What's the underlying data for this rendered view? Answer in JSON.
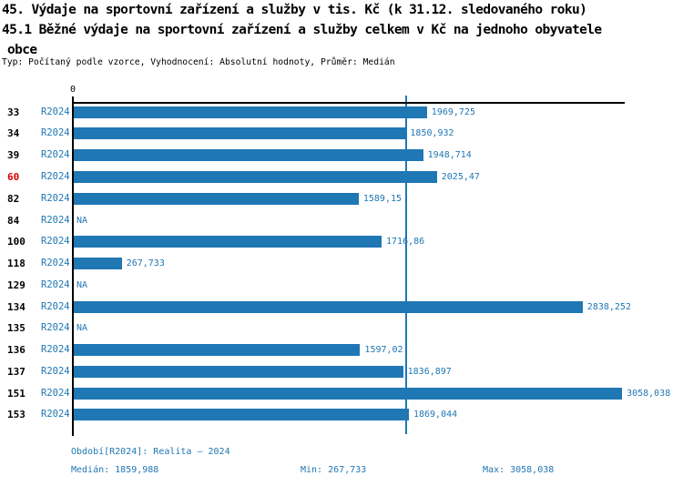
{
  "header": {
    "title_line1": "45. Výdaje na sportovní zařízení a služby v tis. Kč (k 31.12. sledovaného roku)",
    "title_line2": "45.1 Běžné výdaje na sportovní zařízení a služby celkem v Kč na jednoho obyvatele",
    "title_line3": "obce",
    "meta_line": "Typ: Počítaný podle vzorce, Vyhodnocení: Absolutní hodnoty, Průměr: Medián"
  },
  "chart_data": {
    "type": "bar",
    "orientation": "horizontal",
    "title": "45.1 Běžné výdaje na sportovní zařízení a služby celkem v Kč na jednoho obyvatele obce",
    "xlabel": "",
    "ylabel": "",
    "xlim": [
      0,
      3078
    ],
    "x_tick_labels": [
      "0"
    ],
    "grid": false,
    "legend_position": "none",
    "bar_color": "#1f77b4",
    "series_label": "R2024",
    "median_value": 1859.988,
    "categories": [
      "33",
      "34",
      "39",
      "60",
      "82",
      "84",
      "100",
      "118",
      "129",
      "134",
      "135",
      "136",
      "137",
      "151",
      "153"
    ],
    "rows": [
      {
        "municipality": "33",
        "period": "R2024",
        "value": 1969.725,
        "value_label": "1969,725",
        "highlighted": false
      },
      {
        "municipality": "34",
        "period": "R2024",
        "value": 1850.932,
        "value_label": "1850,932",
        "highlighted": false
      },
      {
        "municipality": "39",
        "period": "R2024",
        "value": 1948.714,
        "value_label": "1948,714",
        "highlighted": false
      },
      {
        "municipality": "60",
        "period": "R2024",
        "value": 2025.47,
        "value_label": "2025,47",
        "highlighted": true
      },
      {
        "municipality": "82",
        "period": "R2024",
        "value": 1589.15,
        "value_label": "1589,15",
        "highlighted": false
      },
      {
        "municipality": "84",
        "period": "R2024",
        "value": null,
        "value_label": "NA",
        "highlighted": false
      },
      {
        "municipality": "100",
        "period": "R2024",
        "value": 1716.86,
        "value_label": "1716,86",
        "highlighted": false
      },
      {
        "municipality": "118",
        "period": "R2024",
        "value": 267.733,
        "value_label": "267,733",
        "highlighted": false
      },
      {
        "municipality": "129",
        "period": "R2024",
        "value": null,
        "value_label": "NA",
        "highlighted": false
      },
      {
        "municipality": "134",
        "period": "R2024",
        "value": 2838.252,
        "value_label": "2838,252",
        "highlighted": false
      },
      {
        "municipality": "135",
        "period": "R2024",
        "value": null,
        "value_label": "NA",
        "highlighted": false
      },
      {
        "municipality": "136",
        "period": "R2024",
        "value": 1597.02,
        "value_label": "1597,02",
        "highlighted": false
      },
      {
        "municipality": "137",
        "period": "R2024",
        "value": 1836.897,
        "value_label": "1836,897",
        "highlighted": false
      },
      {
        "municipality": "151",
        "period": "R2024",
        "value": 3058.038,
        "value_label": "3058,038",
        "highlighted": false
      },
      {
        "municipality": "153",
        "period": "R2024",
        "value": 1869.044,
        "value_label": "1869,044",
        "highlighted": false
      }
    ]
  },
  "footer": {
    "period_line": "Období[R2024]: Realita – 2024",
    "median_label": "Medián: 1859,988",
    "min_label": "Min: 267,733",
    "max_label": "Max: 3058,038"
  },
  "colors": {
    "accent_blue": "#1f77b4",
    "highlight_red": "#d40000",
    "axis_black": "#000000",
    "background": "#ffffff"
  }
}
